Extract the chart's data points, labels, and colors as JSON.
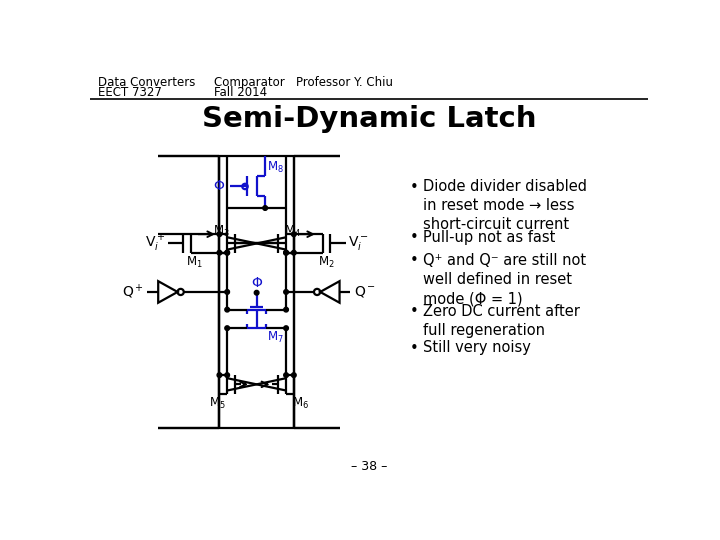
{
  "header_left_line1": "Data Converters",
  "header_left_line2": "EECT 7327",
  "header_center_line1": "Comparator   Professor Y. Chiu",
  "header_center_line2": "Fall 2014",
  "title": "Semi-Dynamic Latch",
  "footer": "– 38 –",
  "bullet_points": [
    "Diode divider disabled\nin reset mode → less\nshort-circuit current",
    "Pull-up not as fast",
    "Q⁺ and Q⁻ are still not\nwell defined in reset\nmode (Φ = 1)",
    "Zero DC current after\nfull regeneration",
    "Still very noisy"
  ],
  "background_color": "#ffffff",
  "blue_color": "#1111cc"
}
